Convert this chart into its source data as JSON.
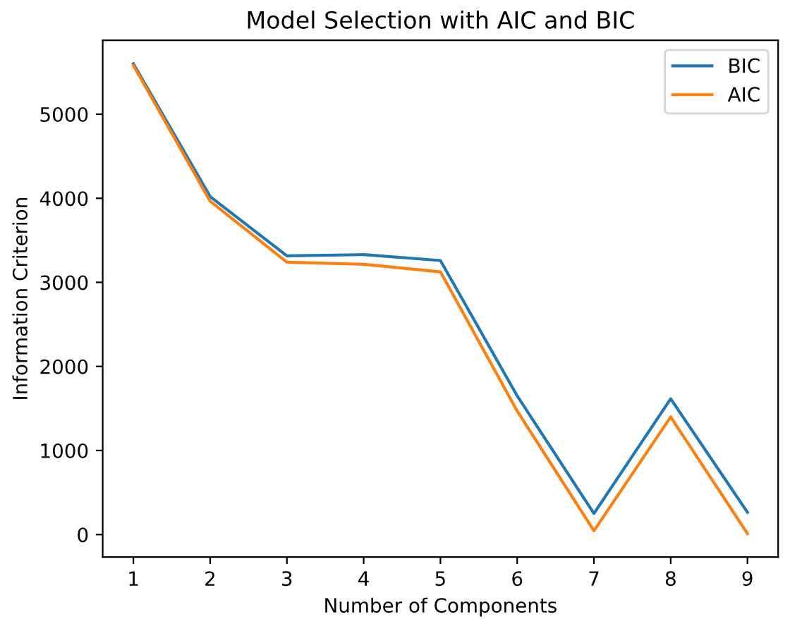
{
  "chart_data": {
    "type": "line",
    "title": "Model Selection with AIC and BIC",
    "xlabel": "Number of Components",
    "ylabel": "Information Criterion",
    "x": [
      1,
      2,
      3,
      4,
      5,
      6,
      7,
      8,
      9
    ],
    "series": [
      {
        "name": "BIC",
        "color": "#1f77b4",
        "values": [
          5600,
          4020,
          3315,
          3330,
          3260,
          1650,
          250,
          1615,
          265
        ]
      },
      {
        "name": "AIC",
        "color": "#ff7f0e",
        "values": [
          5580,
          3965,
          3240,
          3215,
          3125,
          1470,
          45,
          1400,
          12
        ]
      }
    ],
    "xlim": [
      0.6,
      9.4
    ],
    "xticks": [
      1,
      2,
      3,
      4,
      5,
      6,
      7,
      8,
      9
    ],
    "ylim": [
      -268,
      5880
    ],
    "yticks": [
      0,
      1000,
      2000,
      3000,
      4000,
      5000
    ],
    "grid": false,
    "legend": "top right",
    "marker": "none",
    "line_style": "solid"
  }
}
